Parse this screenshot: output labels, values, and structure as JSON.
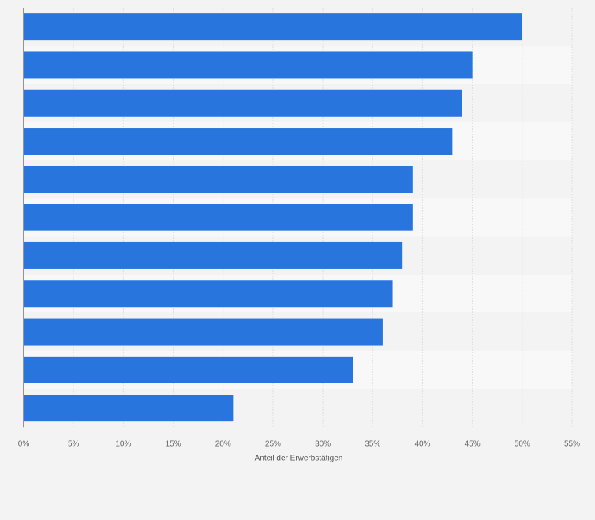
{
  "chart_data": {
    "type": "bar",
    "orientation": "horizontal",
    "categories": [
      "",
      "",
      "",
      "",
      "",
      "",
      "",
      "",
      "",
      "",
      ""
    ],
    "values": [
      50,
      45,
      44,
      43,
      39,
      39,
      38,
      37,
      36,
      33,
      21
    ],
    "title": "",
    "xlabel": "Anteil der Erwerbstätigen",
    "ylabel": "",
    "xlim": [
      0,
      55
    ],
    "xticks": [
      0,
      5,
      10,
      15,
      20,
      25,
      30,
      35,
      40,
      45,
      50,
      55
    ],
    "tick_labels": [
      "0%",
      "5%",
      "10%",
      "15%",
      "20%",
      "25%",
      "30%",
      "35%",
      "40%",
      "45%",
      "50%",
      "55%"
    ],
    "grid": true,
    "legend": "none",
    "colors": {
      "bar": "#2876dd",
      "background": "#f3f3f3",
      "band_light": "#f8f8f8",
      "gridline": "#dddddd",
      "axis": "#333333"
    }
  }
}
